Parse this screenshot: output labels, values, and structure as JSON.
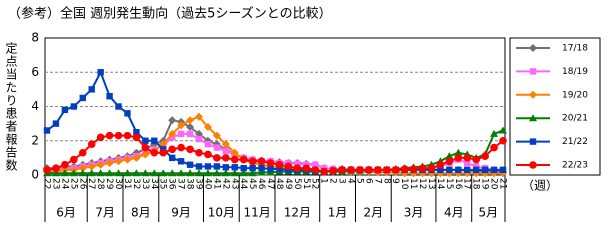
{
  "chart_data": {
    "type": "line",
    "title": "（参考）全国 週別発生動向（過去5シーズンとの比較）",
    "y_label": "定点当たり患者報告数",
    "x_label": "（週）",
    "categories": [
      "22",
      "23",
      "24",
      "25",
      "26",
      "27",
      "28",
      "29",
      "30",
      "31",
      "32",
      "33",
      "34",
      "35",
      "36",
      "37",
      "38",
      "39",
      "40",
      "41",
      "42",
      "43",
      "44",
      "45",
      "46",
      "47",
      "48",
      "49",
      "50",
      "51",
      "52",
      "1",
      "2",
      "3",
      "4",
      "5",
      "6",
      "7",
      "8",
      "9",
      "10",
      "11",
      "12",
      "13",
      "14",
      "15",
      "16",
      "17",
      "18",
      "19",
      "20",
      "21"
    ],
    "months": [
      "6月",
      "7月",
      "8月",
      "9月",
      "10月",
      "11月",
      "12月",
      "1月",
      "2月",
      "3月",
      "4月",
      "5月"
    ],
    "ylim": [
      0,
      8
    ],
    "yticks": [
      0,
      2,
      4,
      6,
      8
    ],
    "grid": true,
    "series": [
      {
        "name": "17/18",
        "color": "#707070",
        "marker": "diamond",
        "values": [
          0.4,
          0.4,
          0.5,
          0.5,
          0.6,
          0.7,
          0.8,
          0.9,
          1.0,
          1.1,
          1.3,
          1.5,
          1.8,
          2.0,
          3.2,
          3.1,
          2.8,
          2.4,
          2.0,
          1.8,
          1.5,
          1.2,
          1.0,
          0.9,
          0.85,
          0.8,
          0.75,
          0.7,
          0.7,
          0.65,
          0.6,
          0.4,
          0.35,
          0.35,
          0.3,
          0.3,
          0.3,
          0.3,
          0.3,
          0.3,
          0.3,
          0.3,
          0.3,
          0.3,
          0.3,
          0.3,
          0.3,
          0.25,
          0.25,
          0.2,
          0.2,
          0.2
        ]
      },
      {
        "name": "18/19",
        "color": "#ff66ff",
        "marker": "square",
        "values": [
          0.3,
          0.3,
          0.4,
          0.4,
          0.5,
          0.6,
          0.7,
          0.8,
          0.9,
          1.0,
          1.1,
          1.3,
          1.5,
          1.7,
          2.2,
          2.4,
          2.4,
          2.1,
          1.8,
          1.6,
          1.4,
          1.2,
          1.0,
          0.9,
          0.8,
          0.8,
          0.7,
          0.7,
          0.65,
          0.6,
          0.6,
          0.4,
          0.35,
          0.3,
          0.3,
          0.3,
          0.3,
          0.3,
          0.3,
          0.3,
          0.3,
          0.3,
          0.35,
          0.4,
          0.5,
          0.7,
          0.9,
          0.7,
          0.5,
          0.4,
          0.3,
          0.3
        ]
      },
      {
        "name": "19/20",
        "color": "#ff8000",
        "marker": "diamond",
        "values": [
          0.2,
          0.2,
          0.3,
          0.3,
          0.4,
          0.5,
          0.6,
          0.7,
          0.8,
          0.9,
          1.0,
          1.2,
          1.4,
          1.8,
          2.4,
          2.9,
          3.2,
          3.4,
          2.8,
          2.3,
          1.8,
          1.3,
          0.9,
          0.7,
          0.6,
          0.5,
          0.45,
          0.4,
          0.35,
          0.3,
          0.3,
          0.25,
          0.2,
          0.2,
          0.2,
          0.2,
          0.2,
          0.15,
          0.15,
          0.15,
          0.1,
          0.1,
          0.1,
          0.1,
          0.1,
          0.1,
          0.1,
          0.1,
          0.1,
          0.1,
          0.1,
          0.1
        ]
      },
      {
        "name": "20/21",
        "color": "#008000",
        "marker": "triangle",
        "values": [
          0.1,
          0.1,
          0.1,
          0.1,
          0.1,
          0.1,
          0.1,
          0.1,
          0.1,
          0.1,
          0.1,
          0.1,
          0.1,
          0.1,
          0.1,
          0.1,
          0.1,
          0.1,
          0.1,
          0.1,
          0.1,
          0.1,
          0.1,
          0.1,
          0.15,
          0.15,
          0.2,
          0.2,
          0.2,
          0.2,
          0.2,
          0.2,
          0.2,
          0.2,
          0.25,
          0.25,
          0.3,
          0.3,
          0.3,
          0.35,
          0.4,
          0.45,
          0.5,
          0.6,
          0.8,
          1.1,
          1.3,
          1.2,
          1.0,
          1.2,
          2.4,
          2.6
        ]
      },
      {
        "name": "21/22",
        "color": "#0040c0",
        "marker": "square",
        "values": [
          2.6,
          3.0,
          3.8,
          4.0,
          4.5,
          5.0,
          6.0,
          4.6,
          4.0,
          3.6,
          2.5,
          2.0,
          2.0,
          1.5,
          1.0,
          0.8,
          0.6,
          0.5,
          0.5,
          0.5,
          0.45,
          0.45,
          0.4,
          0.4,
          0.4,
          0.35,
          0.35,
          0.3,
          0.3,
          0.3,
          0.25,
          0.2,
          0.25,
          0.3,
          0.3,
          0.3,
          0.3,
          0.3,
          0.3,
          0.3,
          0.3,
          0.3,
          0.3,
          0.3,
          0.3,
          0.3,
          0.3,
          0.3,
          0.3,
          0.3,
          0.3,
          0.3
        ]
      },
      {
        "name": "22/23",
        "color": "#ff0000",
        "marker": "circle",
        "values": [
          0.3,
          0.4,
          0.6,
          0.9,
          1.3,
          1.8,
          2.2,
          2.3,
          2.3,
          2.3,
          2.2,
          1.6,
          1.3,
          1.3,
          1.5,
          1.6,
          1.5,
          1.3,
          1.2,
          1.0,
          1.0,
          0.9,
          0.9,
          0.8,
          0.8,
          0.7,
          0.6,
          0.5,
          0.4,
          0.4,
          0.3,
          0.2,
          0.25,
          0.3,
          0.3,
          0.3,
          0.3,
          0.3,
          0.3,
          0.3,
          0.35,
          0.35,
          0.4,
          0.4,
          0.6,
          0.8,
          1.0,
          1.0,
          0.9,
          1.1,
          1.6,
          2.0
        ]
      }
    ]
  }
}
